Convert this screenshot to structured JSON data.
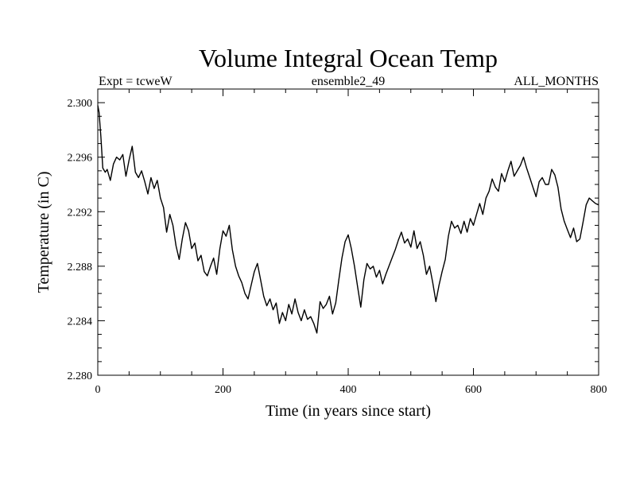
{
  "chart_data": {
    "type": "line",
    "title": "Volume Integral Ocean Temp",
    "subtitle_left": "Expt = tcweW",
    "subtitle_center": "ensemble2_49",
    "subtitle_right": "ALL_MONTHS",
    "xlabel": "Time (in years since start)",
    "ylabel": "Temperature (in C)",
    "xlim": [
      0,
      800
    ],
    "ylim": [
      2.28,
      2.301
    ],
    "x_ticks": [
      0,
      200,
      400,
      600,
      800
    ],
    "x_tick_labels": [
      "0",
      "200",
      "400",
      "600",
      "800"
    ],
    "y_ticks": [
      2.28,
      2.284,
      2.288,
      2.292,
      2.296,
      2.3
    ],
    "y_tick_labels": [
      "2.280",
      "2.284",
      "2.288",
      "2.292",
      "2.296",
      "2.300"
    ],
    "series": [
      {
        "name": "ensemble2_49",
        "color": "#000000",
        "x": [
          0,
          2,
          5,
          8,
          12,
          15,
          20,
          25,
          30,
          35,
          40,
          45,
          50,
          55,
          60,
          65,
          70,
          75,
          80,
          85,
          90,
          95,
          100,
          105,
          110,
          115,
          120,
          125,
          130,
          135,
          140,
          145,
          150,
          155,
          160,
          165,
          170,
          175,
          180,
          185,
          190,
          195,
          200,
          205,
          210,
          215,
          220,
          225,
          230,
          235,
          240,
          245,
          250,
          255,
          260,
          265,
          270,
          275,
          280,
          285,
          290,
          295,
          300,
          305,
          310,
          315,
          320,
          325,
          330,
          335,
          340,
          345,
          350,
          355,
          360,
          365,
          370,
          375,
          380,
          385,
          390,
          395,
          400,
          405,
          410,
          415,
          420,
          425,
          430,
          435,
          440,
          445,
          450,
          455,
          460,
          465,
          470,
          475,
          480,
          485,
          490,
          495,
          500,
          505,
          510,
          515,
          520,
          525,
          530,
          535,
          540,
          545,
          550,
          555,
          560,
          565,
          570,
          575,
          580,
          585,
          590,
          595,
          600,
          605,
          610,
          615,
          620,
          625,
          630,
          635,
          640,
          645,
          650,
          655,
          660,
          665,
          670,
          675,
          680,
          685,
          690,
          695,
          700,
          705,
          710,
          715,
          720,
          725,
          730,
          735,
          740,
          745,
          750,
          755,
          760,
          765,
          770,
          775,
          780,
          785,
          790,
          795,
          800
        ],
        "values": [
          2.2998,
          2.2993,
          2.2975,
          2.2952,
          2.2949,
          2.2951,
          2.2943,
          2.2955,
          2.296,
          2.2958,
          2.2962,
          2.2946,
          2.2958,
          2.2968,
          2.2949,
          2.2945,
          2.295,
          2.2942,
          2.2933,
          2.2945,
          2.2937,
          2.2943,
          2.293,
          2.2923,
          2.2905,
          2.2918,
          2.291,
          2.2895,
          2.2885,
          2.29,
          2.2912,
          2.2906,
          2.2893,
          2.2897,
          2.2884,
          2.2888,
          2.2876,
          2.2873,
          2.288,
          2.2886,
          2.2874,
          2.2893,
          2.2906,
          2.2902,
          2.291,
          2.2892,
          2.288,
          2.2873,
          2.2868,
          2.286,
          2.2856,
          2.2866,
          2.2876,
          2.2882,
          2.287,
          2.2858,
          2.2851,
          2.2856,
          2.2848,
          2.2853,
          2.2838,
          2.2846,
          2.284,
          2.2852,
          2.2845,
          2.2856,
          2.2846,
          2.284,
          2.2848,
          2.2841,
          2.2843,
          2.2838,
          2.2831,
          2.2854,
          2.2849,
          2.2852,
          2.2858,
          2.2845,
          2.2853,
          2.287,
          2.2886,
          2.2898,
          2.2903,
          2.2893,
          2.288,
          2.2865,
          2.285,
          2.287,
          2.2882,
          2.2878,
          2.288,
          2.2872,
          2.2877,
          2.2867,
          2.2874,
          2.288,
          2.2886,
          2.2892,
          2.2899,
          2.2905,
          2.2897,
          2.29,
          2.2894,
          2.2906,
          2.2893,
          2.2898,
          2.2888,
          2.2874,
          2.288,
          2.2868,
          2.2854,
          2.2866,
          2.2876,
          2.2885,
          2.2902,
          2.2913,
          2.2908,
          2.291,
          2.2904,
          2.2913,
          2.2905,
          2.2915,
          2.291,
          2.2918,
          2.2926,
          2.2918,
          2.293,
          2.2935,
          2.2944,
          2.2938,
          2.2935,
          2.2948,
          2.2942,
          2.295,
          2.2957,
          2.2946,
          2.295,
          2.2954,
          2.296,
          2.2952,
          2.2945,
          2.2938,
          2.2931,
          2.2942,
          2.2945,
          2.294,
          2.294,
          2.2951,
          2.2947,
          2.2938,
          2.2922,
          2.2913,
          2.2907,
          2.2901,
          2.2908,
          2.2898,
          2.29,
          2.2912,
          2.2925,
          2.293,
          2.2928,
          2.2926,
          2.2925
        ]
      }
    ]
  }
}
